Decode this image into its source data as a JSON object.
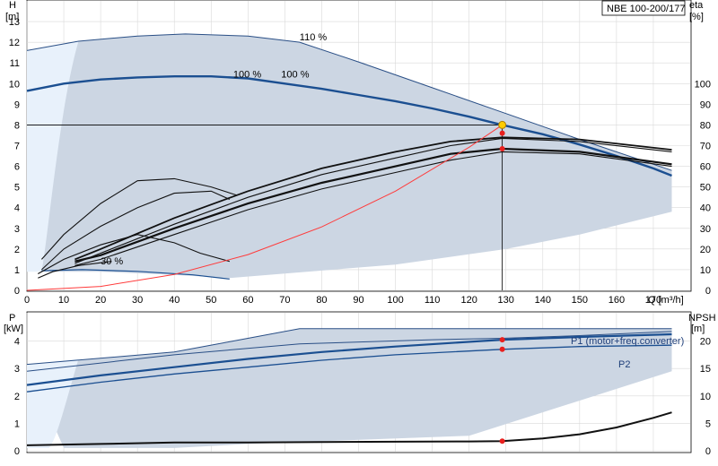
{
  "model_label": "NBE 100-200/177",
  "chart_data": [
    {
      "type": "line",
      "name_panel": "upper",
      "xlabel": "Q [m³/h]",
      "ylabel_left": "H",
      "ylabel_left_unit": "[m]",
      "ylabel_right": "eta",
      "ylabel_right_unit": "[%]",
      "xlim": [
        0,
        180
      ],
      "ylim_left": [
        0,
        14
      ],
      "ylim_right": [
        0,
        140
      ],
      "x_ticks": [
        0,
        10,
        20,
        30,
        40,
        50,
        60,
        70,
        80,
        90,
        100,
        110,
        120,
        130,
        140,
        150,
        160,
        170
      ],
      "y_left_ticks": [
        0,
        1,
        2,
        3,
        4,
        5,
        6,
        7,
        8,
        9,
        10,
        11,
        12,
        13
      ],
      "y_right_ticks": [
        0,
        10,
        20,
        30,
        40,
        50,
        60,
        70,
        80,
        90,
        100
      ],
      "grid": true,
      "duty_point": {
        "q": 129,
        "h": 8.0
      },
      "curve_labels": [
        {
          "text": "110 %",
          "q": 74,
          "h": 12.1
        },
        {
          "text": "100 %",
          "q": 56,
          "h": 10.3
        },
        {
          "text": "100 %",
          "q": 69,
          "h": 10.3
        },
        {
          "text": "30 %",
          "q": 20,
          "h": 1.25
        }
      ],
      "series": [
        {
          "role": "operating-range-envelope",
          "upper": [
            [
              0,
              11.6
            ],
            [
              14,
              12.05
            ],
            [
              30,
              12.3
            ],
            [
              43,
              12.4
            ],
            [
              60,
              12.3
            ],
            [
              74,
              12.0
            ],
            [
              90,
              11.05
            ],
            [
              110,
              9.8
            ],
            [
              130,
              8.55
            ],
            [
              150,
              7.3
            ],
            [
              175,
              5.8
            ]
          ],
          "lower": [
            [
              4,
              0.9
            ],
            [
              20,
              0.9
            ],
            [
              40,
              0.75
            ],
            [
              55,
              0.6
            ],
            [
              100,
              1.25
            ],
            [
              130,
              2.0
            ],
            [
              150,
              2.7
            ],
            [
              175,
              3.8
            ]
          ]
        },
        {
          "role": "head-100",
          "x": [
            0,
            10,
            20,
            30,
            40,
            50,
            60,
            70,
            80,
            90,
            100,
            110,
            120,
            129,
            140,
            150,
            160,
            170,
            175
          ],
          "y": [
            9.65,
            10.0,
            10.2,
            10.3,
            10.35,
            10.35,
            10.25,
            10.0,
            9.75,
            9.45,
            9.15,
            8.8,
            8.4,
            8.0,
            7.55,
            7.05,
            6.5,
            5.9,
            5.55
          ]
        },
        {
          "role": "head-30",
          "x": [
            4,
            15,
            30,
            45,
            55
          ],
          "y": [
            0.95,
            1.0,
            0.92,
            0.75,
            0.55
          ]
        },
        {
          "role": "eta-upper-1",
          "x": [
            13,
            20,
            40,
            60,
            80,
            100,
            115,
            129,
            150,
            175
          ],
          "y": [
            15,
            20,
            35,
            48,
            59,
            67,
            72,
            74,
            73,
            68
          ]
        },
        {
          "role": "eta-upper-2",
          "x": [
            13,
            20,
            40,
            60,
            80,
            100,
            115,
            129,
            150,
            175
          ],
          "y": [
            13,
            18,
            32,
            45,
            56,
            64,
            70,
            73.5,
            72,
            67
          ]
        },
        {
          "role": "eta-lower-1",
          "x": [
            13,
            20,
            40,
            60,
            80,
            100,
            115,
            129,
            150,
            175
          ],
          "y": [
            14,
            17,
            30,
            42,
            52,
            60,
            66,
            68.5,
            67,
            61
          ]
        },
        {
          "role": "eta-lower-2",
          "x": [
            13,
            20,
            40,
            60,
            80,
            100,
            115,
            129,
            150,
            175
          ],
          "y": [
            12,
            15,
            27,
            39,
            49,
            57,
            63,
            67,
            66,
            60
          ]
        },
        {
          "role": "eta-reduced-speed-a",
          "x": [
            4,
            10,
            20,
            30,
            40,
            50,
            57
          ],
          "y": [
            15,
            27,
            42,
            53,
            54,
            50,
            46
          ]
        },
        {
          "role": "eta-reduced-speed-b",
          "x": [
            4,
            10,
            20,
            30,
            40,
            50,
            55
          ],
          "y": [
            10,
            20,
            31,
            40,
            47,
            48,
            44
          ]
        },
        {
          "role": "eta-low-speed",
          "x": [
            3,
            10,
            20,
            30,
            40,
            47,
            55
          ],
          "y": [
            8,
            15,
            22,
            27,
            23,
            18,
            14
          ]
        },
        {
          "role": "eta-lowest",
          "x": [
            3,
            7,
            14,
            23
          ],
          "y": [
            6,
            9,
            12,
            14
          ]
        },
        {
          "role": "system-curve",
          "x": [
            0,
            20,
            40,
            60,
            80,
            100,
            120,
            129
          ],
          "y": [
            0,
            0.19,
            0.77,
            1.73,
            3.07,
            4.8,
            6.92,
            8.0
          ]
        }
      ],
      "duty_markers_right": [
        {
          "q": 129,
          "eta": 76
        },
        {
          "q": 129,
          "eta": 68.5
        }
      ]
    },
    {
      "type": "line",
      "name_panel": "lower",
      "ylabel_left": "P",
      "ylabel_left_unit": "[kW]",
      "ylabel_right": "NPSH",
      "ylabel_right_unit": "[m]",
      "xlim": [
        0,
        180
      ],
      "ylim_left": [
        0,
        5
      ],
      "ylim_right": [
        0,
        25
      ],
      "y_left_ticks": [
        0,
        1,
        2,
        3,
        4
      ],
      "y_right_ticks": [
        0,
        5,
        10,
        15,
        20
      ],
      "legend_p1": "P1 (motor+freq.converter)",
      "legend_p2": "P2",
      "series": [
        {
          "role": "power-envelope",
          "upper": [
            [
              0,
              3.15
            ],
            [
              40,
              3.6
            ],
            [
              74,
              4.45
            ],
            [
              110,
              4.45
            ],
            [
              175,
              4.45
            ]
          ],
          "lower": [
            [
              10,
              0.1
            ],
            [
              40,
              0.1
            ],
            [
              60,
              0.25
            ],
            [
              120,
              0.55
            ],
            [
              175,
              2.9
            ]
          ]
        },
        {
          "role": "p1-upper",
          "x": [
            0,
            40,
            74,
            110,
            129,
            150,
            175
          ],
          "y": [
            2.9,
            3.5,
            3.9,
            4.05,
            4.1,
            4.2,
            4.35
          ]
        },
        {
          "role": "p1-main",
          "x": [
            0,
            20,
            40,
            60,
            80,
            100,
            129,
            150,
            175
          ],
          "y": [
            2.4,
            2.75,
            3.05,
            3.35,
            3.6,
            3.8,
            4.05,
            4.15,
            4.25
          ]
        },
        {
          "role": "p2-main",
          "x": [
            0,
            20,
            40,
            60,
            80,
            100,
            129,
            150,
            175
          ],
          "y": [
            2.15,
            2.5,
            2.8,
            3.05,
            3.3,
            3.5,
            3.7,
            3.8,
            3.85
          ]
        },
        {
          "role": "npsh",
          "x": [
            0,
            20,
            40,
            60,
            80,
            100,
            120,
            129,
            140,
            150,
            160,
            170,
            175
          ],
          "y": [
            0.2,
            0.25,
            0.3,
            0.3,
            0.32,
            0.33,
            0.34,
            0.35,
            0.45,
            0.6,
            0.85,
            1.2,
            1.4
          ]
        }
      ],
      "duty_markers": [
        {
          "q": 129,
          "p": 4.05
        },
        {
          "q": 129,
          "p": 3.7
        },
        {
          "q": 129,
          "npsh_kw_axis": 0.35
        }
      ]
    }
  ]
}
